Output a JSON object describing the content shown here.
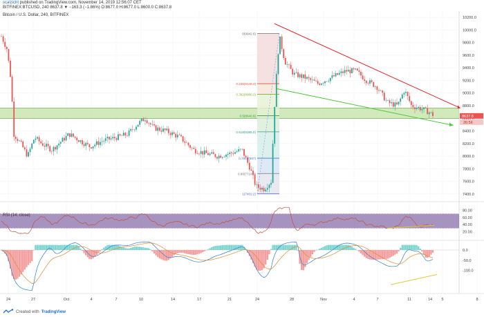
{
  "header": {
    "line1_user": "scalzicht",
    "line1_rest": " published on TradingView.com, November 14, 2019 12:56:07 CET",
    "line2": "BITFINEX:BTCUSD, 240  8637.8 ▼ −163.3 (−1.86%)  O:8677.0  H:8677.0  L:8600.0  C:8637.8"
  },
  "pane_labels": {
    "main": "Bitcoin / U.S. Dollar, 240, BITFINEX",
    "rsi": "RSI (14, close)"
  },
  "price_axis": [
    "10200.0",
    "10000.0",
    "9800.0",
    "9600.0",
    "9400.0",
    "9200.0",
    "9000.0",
    "8800.0",
    "8600.0",
    "8400.0",
    "8200.0",
    "8000.0",
    "7800.0",
    "7600.0",
    "7400.0"
  ],
  "price_badges": {
    "last": "8637.8",
    "timer": "26:56"
  },
  "rsi_axis": [
    "80.00",
    "60.00",
    "40.00",
    "20.00"
  ],
  "macd_axis": [
    "0.0",
    "-50.0",
    "-100.0"
  ],
  "time_axis": [
    "24",
    "27",
    "Oct",
    "4",
    "7",
    "10",
    "14",
    "17",
    "21",
    "24",
    "28",
    "Nov",
    "4",
    "7",
    "11",
    "14",
    "5",
    "8"
  ],
  "fib_levels": [
    {
      "label": "0(9942.6)",
      "price": 9942.6,
      "color": "#6b6b6b"
    },
    {
      "label": "0.236(9148.4)",
      "price": 9148.4,
      "color": "#e0533a"
    },
    {
      "label": "0.382(8980.2)",
      "price": 8980.2,
      "color": "#7fae2e"
    },
    {
      "label": "0.5(8640.6)",
      "price": 8640.6,
      "color": "#3d9c45"
    },
    {
      "label": "0.618(8385.0)",
      "price": 8385.0,
      "color": "#2a9a8a"
    },
    {
      "label": "0.786(7967)",
      "price": 7967.0,
      "color": "#3a7fc8"
    },
    {
      "label": "0.88(7724.0)",
      "price": 7724.0,
      "color": "#7a7a7a"
    },
    {
      "label": "1(7402.2)",
      "price": 7402.2,
      "color": "#4f6fd6"
    }
  ],
  "footer": {
    "prefix": "Created with",
    "brand": "TradingView"
  },
  "colors": {
    "candle_up": "#26a69a",
    "candle_down": "#ef5350",
    "support_zone": "#9ccf6a",
    "resistance_line": "#e8262b",
    "support_line": "#4cc93a",
    "rsi_band": "#5e3b8a",
    "rsi_line": "#c0503a",
    "macd_up": "#7fd6d0",
    "macd_down": "#f4a0a0"
  }
}
